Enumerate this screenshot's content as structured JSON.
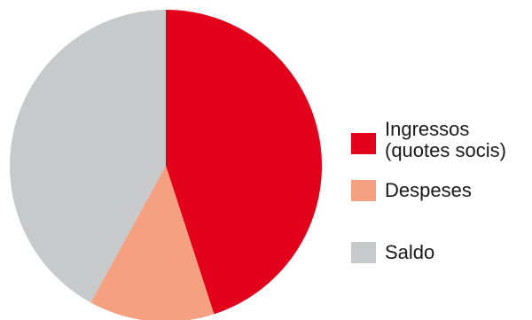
{
  "chart_data": {
    "type": "pie",
    "title": "",
    "slices": [
      {
        "label": "Ingressos\n(quotes socis)",
        "value": 45,
        "color": "#e2001a"
      },
      {
        "label": "Despeses",
        "value": 13,
        "color": "#f4a081"
      },
      {
        "label": "Saldo",
        "value": 42,
        "color": "#c8c9cb"
      }
    ],
    "legend_position": "right"
  }
}
